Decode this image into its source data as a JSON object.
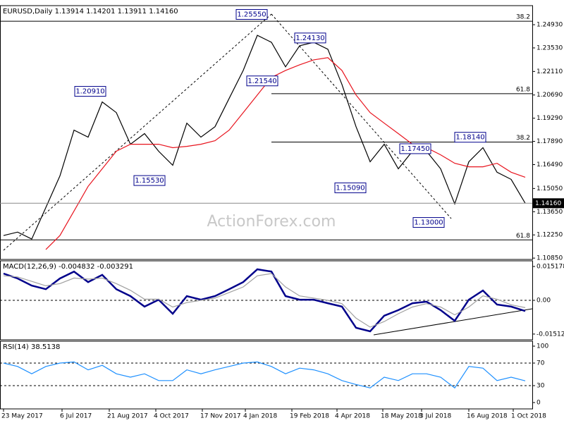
{
  "chart_data": [
    {
      "type": "line",
      "title": "EURUSD,Daily  1.13914 1.14201 1.13911 1.14160",
      "watermark": "ActionForex.com",
      "xlim": [
        -0.25,
        37.5
      ],
      "ylim": [
        1.1077,
        1.2608
      ],
      "yticks": [
        {
          "value": 1.2493,
          "label": "1.24930"
        },
        {
          "value": 1.2353,
          "label": "1.23530"
        },
        {
          "value": 1.2211,
          "label": "1.22110"
        },
        {
          "value": 1.2069,
          "label": "1.20690"
        },
        {
          "value": 1.1929,
          "label": "1.19290"
        },
        {
          "value": 1.1789,
          "label": "1.17890"
        },
        {
          "value": 1.1649,
          "label": "1.16490"
        },
        {
          "value": 1.1505,
          "label": "1.15050"
        },
        {
          "value": 1.1365,
          "label": "1.13650"
        },
        {
          "value": 1.1225,
          "label": "1.12250"
        },
        {
          "value": 1.1085,
          "label": "1.10850"
        }
      ],
      "series": [
        {
          "color": "#000000",
          "values": [
            1.1221,
            1.1242,
            1.12,
            1.139,
            1.1581,
            1.1857,
            1.1815,
            1.2027,
            1.1963,
            1.1772,
            1.1836,
            1.173,
            1.1645,
            1.1899,
            1.1815,
            1.1878,
            1.2048,
            1.2217,
            1.2429,
            1.2387,
            1.2239,
            1.2366,
            1.2387,
            1.2345,
            1.2133,
            1.1878,
            1.1666,
            1.1772,
            1.1624,
            1.173,
            1.173,
            1.1624,
            1.1412,
            1.1666,
            1.1751,
            1.1603,
            1.156,
            1.1416
          ]
        },
        {
          "color": "#e8141e",
          "values": [
            null,
            null,
            null,
            1.1137,
            1.1221,
            1.1369,
            1.1518,
            1.1624,
            1.173,
            1.1772,
            1.1772,
            1.1772,
            1.1751,
            1.1759,
            1.1772,
            1.1793,
            1.1857,
            1.1963,
            1.2069,
            1.2175,
            1.2217,
            1.2251,
            1.2281,
            1.2294,
            1.2217,
            1.2069,
            1.1963,
            1.1899,
            1.1836,
            1.1772,
            1.1751,
            1.1708,
            1.1657,
            1.1636,
            1.1636,
            1.1657,
            1.1603,
            1.1573
          ]
        }
      ],
      "levels": [
        {
          "value": 1.2514,
          "label": "38.2",
          "from": -0.25
        },
        {
          "value": 1.2077,
          "label": "61.8",
          "from": 19
        },
        {
          "value": 1.1785,
          "label": "38.2",
          "from": 19
        },
        {
          "value": 1.1195,
          "label": "61.8",
          "from": -0.25
        }
      ],
      "price_marker": {
        "value": 1.1416,
        "label": "1.14160"
      },
      "annotations": [
        {
          "value": 1.2555,
          "label": "1.25550",
          "x": 17.6
        },
        {
          "value": 1.2413,
          "label": "1.24130",
          "x": 21.75
        },
        {
          "value": 1.2091,
          "label": "1.20910",
          "x": 6.15
        },
        {
          "value": 1.2154,
          "label": "1.21540",
          "x": 18.35
        },
        {
          "value": 1.1553,
          "label": "1.15530",
          "x": 10.35
        },
        {
          "value": 1.1509,
          "label": "1.15090",
          "x": 24.6
        },
        {
          "value": 1.1745,
          "label": "1.17450",
          "x": 29.2
        },
        {
          "value": 1.1814,
          "label": "1.18140",
          "x": 33.1
        },
        {
          "value": 1.13,
          "label": "1.13000",
          "x": 30.15
        }
      ]
    },
    {
      "type": "line",
      "title": "MACD(12,26,9) -0.004832 -0.003291",
      "xlim": [
        -0.25,
        37.5
      ],
      "ylim": [
        -0.0177,
        0.0177
      ],
      "yticks": [
        {
          "value": 0.015178,
          "label": "0.015178"
        },
        {
          "value": 0,
          "label": "0.00"
        },
        {
          "value": -0.015128,
          "label": "-0.015128"
        }
      ],
      "levels": [
        0
      ],
      "series": [
        {
          "color": "#00008b",
          "values": [
            0.012,
            0.0098,
            0.0066,
            0.005,
            0.0098,
            0.0129,
            0.0082,
            0.0114,
            0.005,
            0.0019,
            -0.0028,
            0.0003,
            -0.006,
            0.0019,
            0.0003,
            0.0019,
            0.005,
            0.0082,
            0.0139,
            0.0129,
            0.0019,
            0.0003,
            0.0003,
            -0.0013,
            -0.0028,
            -0.0123,
            -0.0139,
            -0.0069,
            -0.0044,
            -0.0013,
            -0.0006,
            -0.0044,
            -0.0092,
            0.0003,
            0.0044,
            -0.0019,
            -0.0028,
            -0.0048
          ]
        },
        {
          "color": "#a0a0a0",
          "values": [
            0.011,
            0.0105,
            0.0085,
            0.0065,
            0.0075,
            0.01,
            0.0095,
            0.01,
            0.0075,
            0.0045,
            0.0005,
            0.0005,
            -0.003,
            -0.001,
            0,
            0.001,
            0.0035,
            0.006,
            0.011,
            0.012,
            0.006,
            0.002,
            0.001,
            0,
            -0.0015,
            -0.008,
            -0.012,
            -0.0095,
            -0.006,
            -0.003,
            -0.0015,
            -0.003,
            -0.0065,
            -0.003,
            0.002,
            0.0005,
            -0.002,
            -0.0033
          ]
        }
      ]
    },
    {
      "type": "line",
      "title": "RSI(14) 38.5138",
      "xlim": [
        -0.25,
        37.5
      ],
      "ylim": [
        -11.25,
        108.75
      ],
      "yticks": [
        100,
        70,
        30,
        0
      ],
      "levels": [
        70,
        30
      ],
      "xticks": [
        {
          "value": 0,
          "label": "23 May 2017"
        },
        {
          "value": 4.15,
          "label": "6 Jul 2017"
        },
        {
          "value": 7.5,
          "label": "21 Aug 2017"
        },
        {
          "value": 10.8,
          "label": "4 Oct 2017"
        },
        {
          "value": 14.1,
          "label": "17 Nov 2017"
        },
        {
          "value": 17.15,
          "label": "4 Jan 2018"
        },
        {
          "value": 20.45,
          "label": "19 Feb 2018"
        },
        {
          "value": 23.65,
          "label": "4 Apr 2018"
        },
        {
          "value": 26.9,
          "label": "18 May 2018"
        },
        {
          "value": 29.65,
          "label": "3 Jul 2018"
        },
        {
          "value": 33,
          "label": "16 Aug 2018"
        },
        {
          "value": 36.15,
          "label": "1 Oct 2018"
        }
      ],
      "series": [
        {
          "color": "#1e90ff",
          "values": [
            70,
            64,
            51,
            64,
            70,
            72,
            58,
            66,
            51,
            45,
            51,
            39,
            39,
            58,
            51,
            58,
            64,
            70,
            72,
            64,
            51,
            61,
            58,
            51,
            39,
            32,
            26,
            45,
            39,
            51,
            51,
            45,
            26,
            64,
            61,
            39,
            45,
            38.5
          ]
        }
      ]
    }
  ]
}
